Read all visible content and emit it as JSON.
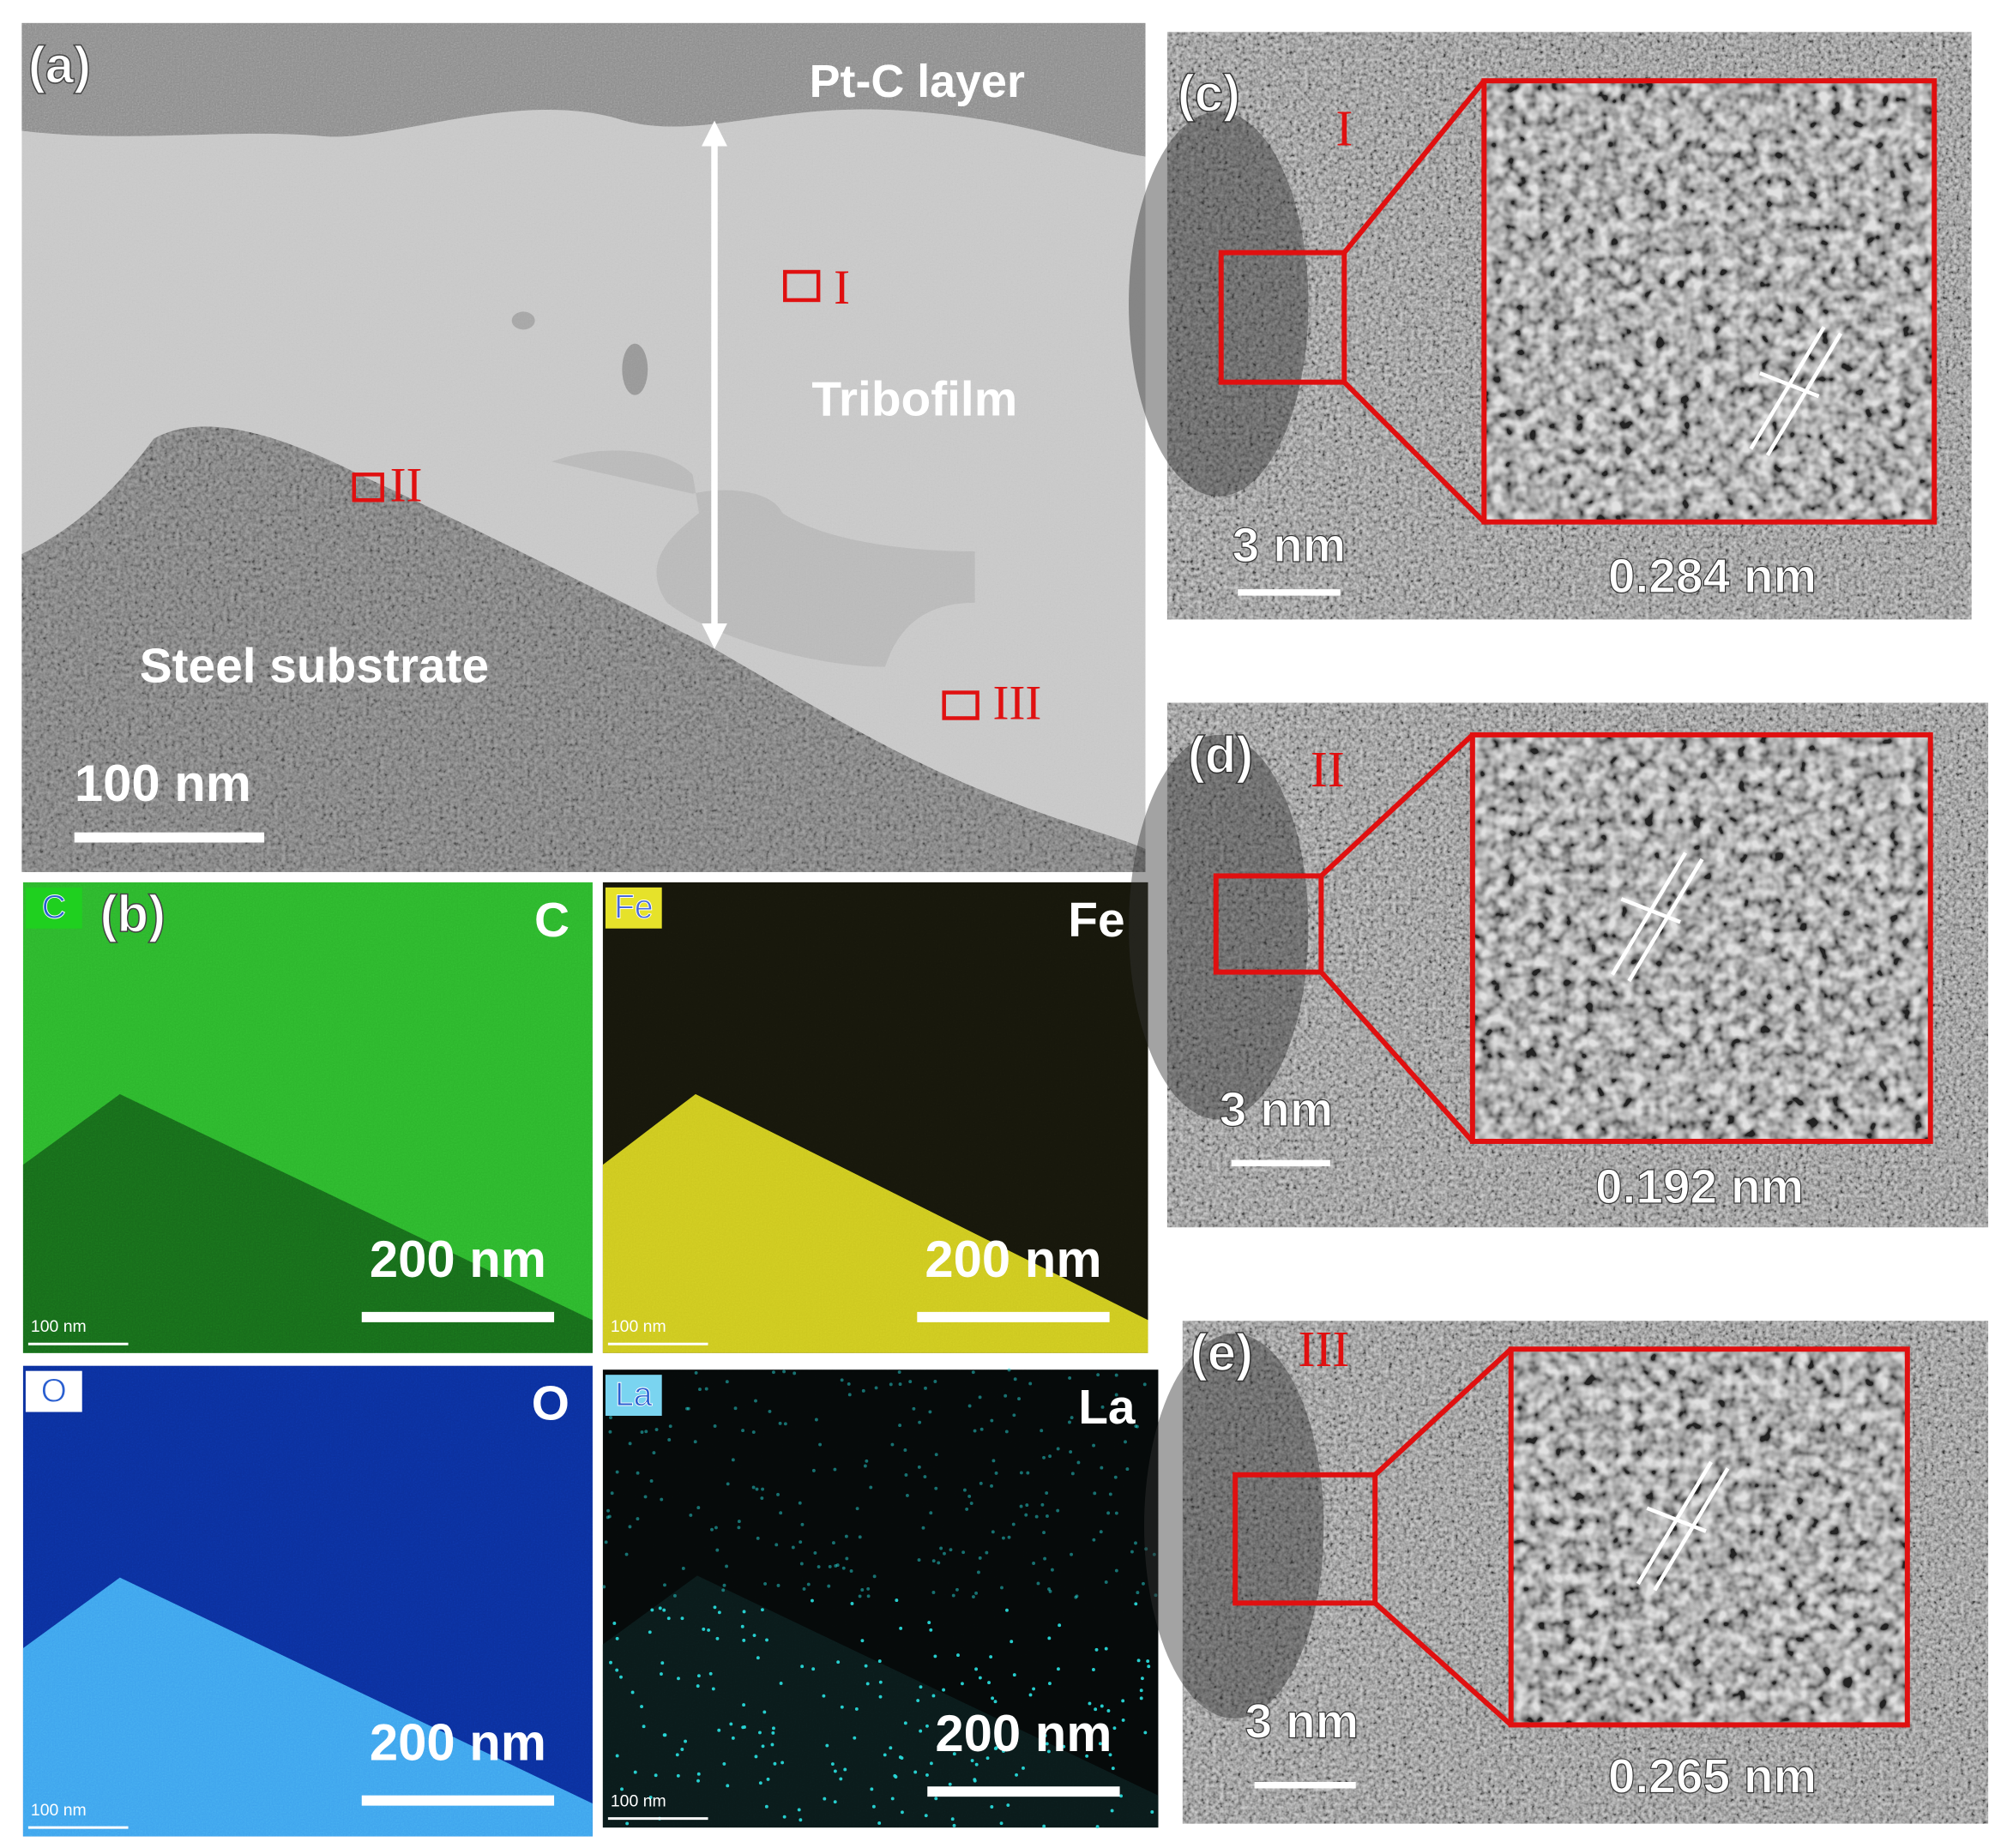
{
  "panel_a": {
    "label": "(a)",
    "pt_c_layer": "Pt-C layer",
    "tribofilm": "Tribofilm",
    "steel_substrate": "Steel substrate",
    "scale_bar": "100 nm",
    "regions": [
      "I",
      "II",
      "III"
    ]
  },
  "panel_b": {
    "label": "(b)",
    "maps": [
      {
        "tag": "C",
        "element": "C",
        "scale_bar": "200 nm",
        "inner_scale_bar": "100 nm"
      },
      {
        "tag": "Fe",
        "element": "Fe",
        "scale_bar": "200 nm",
        "inner_scale_bar": "100 nm"
      },
      {
        "tag": "O",
        "element": "O",
        "scale_bar": "200 nm",
        "inner_scale_bar": "100 nm"
      },
      {
        "tag": "La",
        "element": "La",
        "scale_bar": "200 nm",
        "inner_scale_bar": "100 nm"
      }
    ]
  },
  "hrtem": [
    {
      "label": "(c)",
      "region": "I",
      "scale_bar": "3 nm",
      "spacing": "0.284 nm"
    },
    {
      "label": "(d)",
      "region": "II",
      "scale_bar": "3 nm",
      "spacing": "0.192 nm"
    },
    {
      "label": "(e)",
      "region": "III",
      "scale_bar": "3 nm",
      "spacing": "0.265 nm"
    }
  ]
}
